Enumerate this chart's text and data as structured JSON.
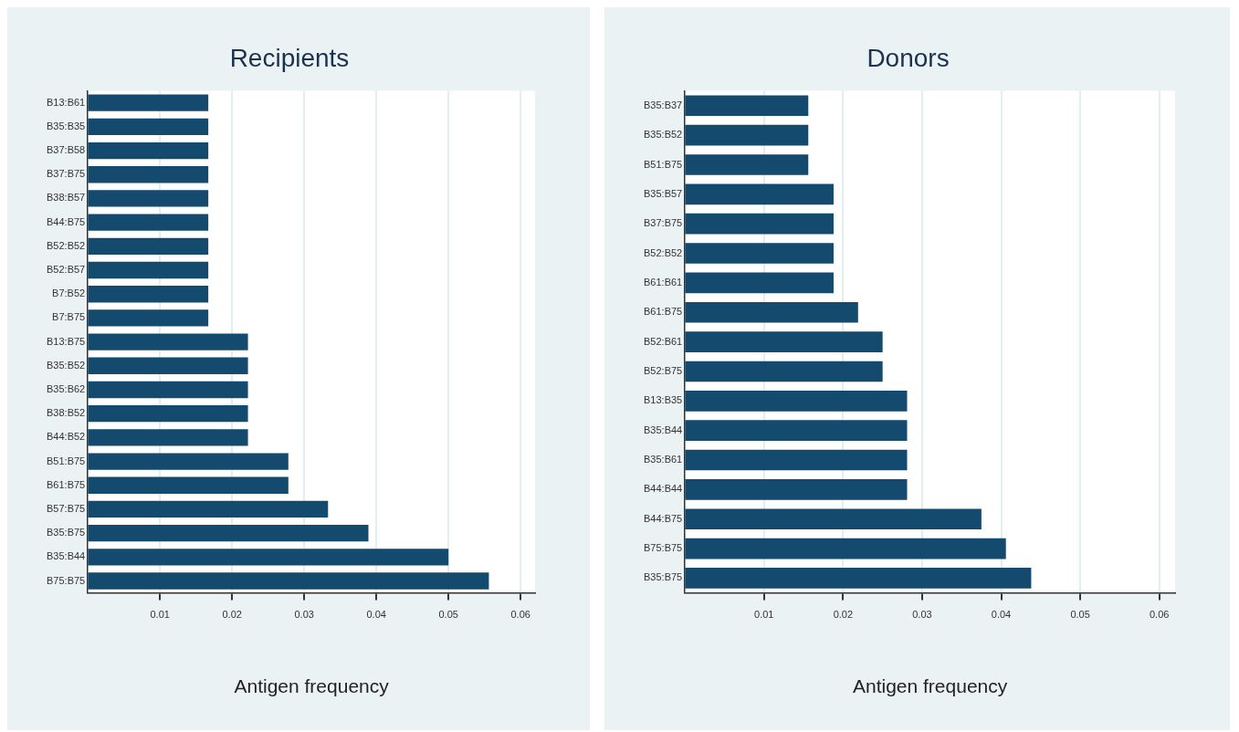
{
  "chart_data": [
    {
      "type": "bar",
      "orientation": "horizontal",
      "title": "Recipients",
      "xlabel": "Antigen frequency",
      "categories": [
        "B13:B61",
        "B35:B35",
        "B37:B58",
        "B37:B75",
        "B38:B57",
        "B44:B75",
        "B52:B52",
        "B52:B57",
        "B7:B52",
        "B7:B75",
        "B13:B75",
        "B35:B52",
        "B35:B62",
        "B38:B52",
        "B44:B52",
        "B51:B75",
        "B61:B75",
        "B57:B75",
        "B35:B75",
        "B35:B44",
        "B75:B75"
      ],
      "values": [
        0.0167,
        0.0167,
        0.0167,
        0.0167,
        0.0167,
        0.0167,
        0.0167,
        0.0167,
        0.0167,
        0.0167,
        0.0222,
        0.0222,
        0.0222,
        0.0222,
        0.0222,
        0.0278,
        0.0278,
        0.0333,
        0.0389,
        0.05,
        0.0556
      ],
      "color": "#134a6e",
      "xlim": [
        0,
        0.062
      ],
      "xticks": [
        0.01,
        0.02,
        0.03,
        0.04,
        0.05,
        0.06
      ],
      "grid": "x",
      "legend": false
    },
    {
      "type": "bar",
      "orientation": "horizontal",
      "title": "Donors",
      "xlabel": "Antigen frequency",
      "categories": [
        "B35:B37",
        "B35:B52",
        "B51:B75",
        "B35:B57",
        "B37:B75",
        "B52:B52",
        "B61:B61",
        "B61:B75",
        "B52:B61",
        "B52:B75",
        "B13:B35",
        "B35:B44",
        "B35:B61",
        "B44:B44",
        "B44:B75",
        "B75:B75",
        "B35:B75"
      ],
      "values": [
        0.0156,
        0.0156,
        0.0156,
        0.0188,
        0.0188,
        0.0188,
        0.0188,
        0.0219,
        0.025,
        0.025,
        0.0281,
        0.0281,
        0.0281,
        0.0281,
        0.0375,
        0.0406,
        0.0438
      ],
      "color": "#134a6e",
      "xlim": [
        0,
        0.062
      ],
      "xticks": [
        0.01,
        0.02,
        0.03,
        0.04,
        0.05,
        0.06
      ],
      "grid": "x",
      "legend": false
    }
  ]
}
